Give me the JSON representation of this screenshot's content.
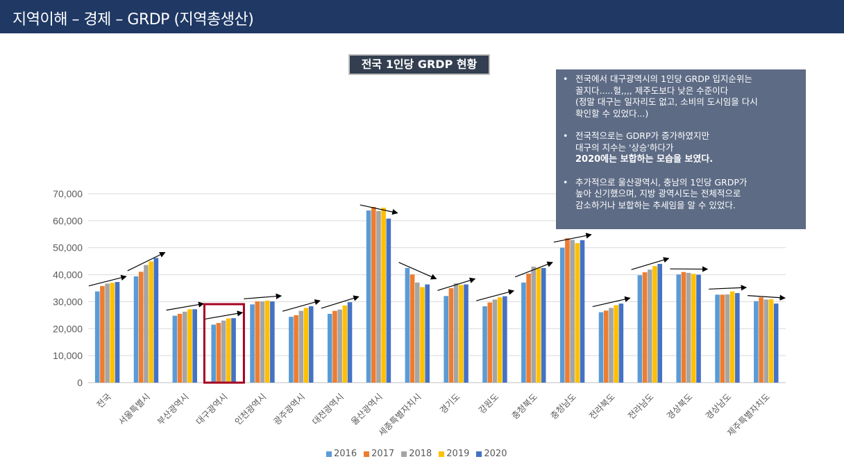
{
  "header": {
    "title": "지역이해 – 경제 – GRDP (지역총생산)"
  },
  "chart_title": "전국 1인당 GRDP 현황",
  "notes": [
    {
      "text": "전국에서 대구광역시의 1인당 GRDP 입지순위는\n꼴지다.....헐,,,, 제주도보다 낮은 수준이다\n(정말 대구는 일자리도 없고, 소비의 도시임을 다시\n확인할 수 있었다...)",
      "strong": ""
    },
    {
      "text": "전국적으로는 GDRP가 증가하였지만\n대구의 지수는 '상승'하다가",
      "strong": "2020에는 보합하는 모습을 보였다."
    },
    {
      "text": "추가적으로 울산광역시, 충남의 1인당 GRDP가\n높아 신기했으며, 지방 광역시도는 전체적으로\n감소하거나 보합하는 추세임을 알 수 있었다.",
      "strong": ""
    }
  ],
  "bullet": "•",
  "colors": {
    "header_bg": "#1f3864",
    "highlight_box": "#a50021",
    "series": [
      "#5b9bd5",
      "#ed7d31",
      "#a5a5a5",
      "#ffc000",
      "#4472c4"
    ]
  },
  "chart_data": {
    "type": "bar",
    "title": "전국 1인당 GRDP 현황",
    "xlabel": "",
    "ylabel": "",
    "ylim": [
      0,
      70000
    ],
    "yticks": [
      "0",
      "10,000",
      "20,000",
      "30,000",
      "40,000",
      "50,000",
      "60,000",
      "70,000"
    ],
    "ytick_values": [
      0,
      10000,
      20000,
      30000,
      40000,
      50000,
      60000,
      70000
    ],
    "grid": true,
    "legend_position": "bottom",
    "highlighted_category": "대구광역시",
    "categories": [
      "전국",
      "서울특별시",
      "부산광역시",
      "대구광역시",
      "인천광역시",
      "광주광역시",
      "대전광역시",
      "울산광역시",
      "세종특별자치시",
      "경기도",
      "강원도",
      "충청북도",
      "충청남도",
      "전라북도",
      "전라남도",
      "경상북도",
      "경상남도",
      "제주특별자치도"
    ],
    "series": [
      {
        "name": "2016",
        "values": [
          33800,
          39400,
          24800,
          21500,
          29000,
          24400,
          25500,
          63800,
          42500,
          32100,
          28300,
          37100,
          50000,
          26100,
          39800,
          40100,
          32600,
          30200
        ]
      },
      {
        "name": "2017",
        "values": [
          35800,
          41100,
          25500,
          22100,
          30100,
          25000,
          26600,
          65100,
          40100,
          35000,
          29700,
          40400,
          53500,
          26700,
          40900,
          41000,
          32600,
          31600
        ]
      },
      {
        "name": "2018",
        "values": [
          36700,
          43600,
          26300,
          23000,
          30100,
          26600,
          27100,
          63600,
          37100,
          36800,
          30800,
          43000,
          52900,
          27700,
          41900,
          40700,
          32700,
          30800
        ]
      },
      {
        "name": "2019",
        "values": [
          37000,
          44900,
          27200,
          23800,
          30400,
          27700,
          28600,
          64800,
          35400,
          36200,
          31600,
          42500,
          51700,
          28700,
          43200,
          40300,
          33800,
          30900
        ]
      },
      {
        "name": "2020",
        "values": [
          37300,
          46200,
          27200,
          23900,
          30100,
          28300,
          29800,
          60800,
          36400,
          36400,
          32000,
          42500,
          52800,
          29300,
          44000,
          40000,
          33200,
          29300
        ]
      }
    ]
  }
}
